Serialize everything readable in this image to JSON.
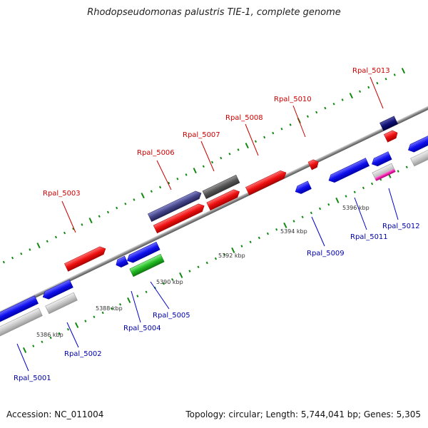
{
  "title": "Rhodopseudomonas palustris TIE-1, complete genome",
  "footer": {
    "accession": "Accession: NC_011004",
    "summary": "Topology: circular; Length: 5,744,041 bp; Genes: 5,305"
  },
  "colors": {
    "forward_label": "#cc0000",
    "reverse_label": "#0000aa",
    "tick": "#118811",
    "backbone": "#888888"
  },
  "scale_labels": [
    "5386 kbp",
    "5388 kbp",
    "5390 kbp",
    "5392 kbp",
    "5394 kbp",
    "5396 kbp"
  ],
  "genes": [
    {
      "name": "Rpal_5001",
      "strand": "reverse",
      "color": "#0000ee"
    },
    {
      "name": "Rpal_5002",
      "strand": "reverse",
      "color": "#0000ee"
    },
    {
      "name": "Rpal_5003",
      "strand": "forward",
      "color": "#ee0000"
    },
    {
      "name": "Rpal_5004",
      "strand": "reverse",
      "color": "#0000ee"
    },
    {
      "name": "Rpal_5005",
      "strand": "reverse",
      "color": "#22bb22"
    },
    {
      "name": "Rpal_5006",
      "strand": "forward",
      "color": "#444488"
    },
    {
      "name": "Rpal_5007",
      "strand": "forward",
      "color": "#555555"
    },
    {
      "name": "Rpal_5008",
      "strand": "forward",
      "color": "#ee0000"
    },
    {
      "name": "Rpal_5009",
      "strand": "reverse",
      "color": "#0000ee"
    },
    {
      "name": "Rpal_5010",
      "strand": "forward",
      "color": "#ee0000"
    },
    {
      "name": "Rpal_5011",
      "strand": "reverse",
      "color": "#0000ee"
    },
    {
      "name": "Rpal_5012",
      "strand": "reverse",
      "color": "#ee22aa"
    },
    {
      "name": "Rpal_5013",
      "strand": "forward",
      "color": "#000077"
    }
  ]
}
